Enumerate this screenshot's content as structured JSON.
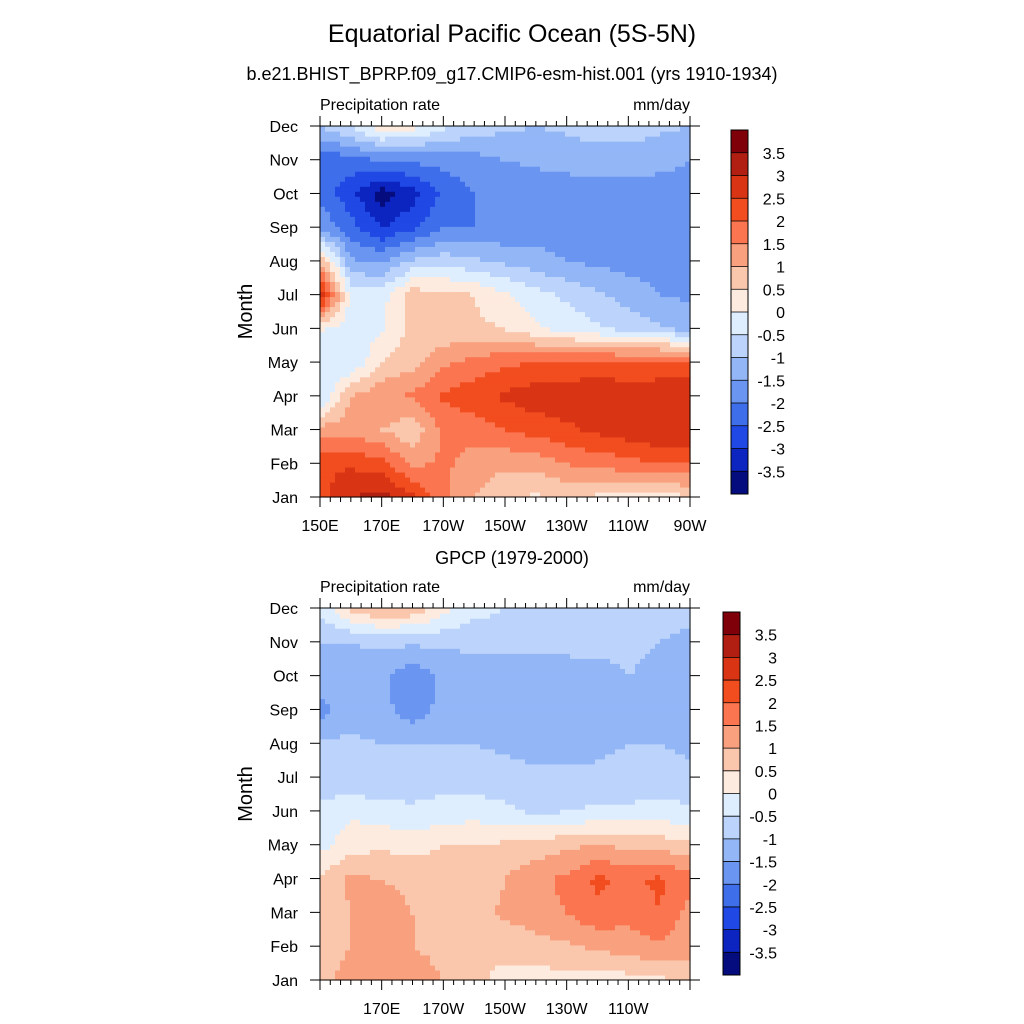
{
  "title": "Equatorial Pacific Ocean (5S-5N)",
  "months": [
    "Jan",
    "Feb",
    "Mar",
    "Apr",
    "May",
    "Jun",
    "Jul",
    "Aug",
    "Sep",
    "Oct",
    "Nov",
    "Dec"
  ],
  "colorbar": {
    "labels": [
      "3.5",
      "3",
      "2.5",
      "2",
      "1.5",
      "1",
      "0.5",
      "0",
      "-0.5",
      "-1",
      "-1.5",
      "-2",
      "-2.5",
      "-3",
      "-3.5"
    ],
    "colors": [
      "#80000a",
      "#b01f12",
      "#d93515",
      "#f24d1f",
      "#fb7650",
      "#f9a07e",
      "#fac7ad",
      "#feebdf",
      "#deeeff",
      "#bcd4fb",
      "#93b6f7",
      "#6a96f2",
      "#3f6eeb",
      "#1f48e4",
      "#0c24c0",
      "#050c7e"
    ]
  },
  "chart_data": [
    {
      "type": "heatmap",
      "subtitle": "b.e21.BHIST_BPRP.f09_g17.CMIP6-esm-hist.001 (yrs 1910-1934)",
      "left_label": "Precipitation rate",
      "right_label": "mm/day",
      "ylabel": "Month",
      "x_ticks": [
        "150E",
        "170E",
        "170W",
        "150W",
        "130W",
        "110W",
        "90W"
      ],
      "x_values": [
        150,
        160,
        170,
        180,
        190,
        200,
        210,
        220,
        230,
        240,
        250,
        260,
        270
      ],
      "y_values": [
        "Jan",
        "Feb",
        "Mar",
        "Apr",
        "May",
        "Jun",
        "Jul",
        "Aug",
        "Sep",
        "Oct",
        "Nov",
        "Dec"
      ],
      "z_values": [
        [
          2.2,
          3.0,
          3.2,
          2.6,
          1.6,
          1.0,
          0.6,
          0.4,
          0.6,
          0.4,
          0.3,
          0.2,
          0.5
        ],
        [
          2.5,
          2.4,
          2.2,
          1.4,
          1.6,
          1.3,
          1.1,
          1.2,
          1.5,
          1.7,
          1.8,
          2.0,
          2.0
        ],
        [
          1.2,
          1.3,
          1.0,
          0.6,
          1.6,
          1.7,
          2.0,
          2.2,
          2.4,
          2.6,
          2.8,
          3.0,
          3.0
        ],
        [
          -0.6,
          1.0,
          1.4,
          1.6,
          2.1,
          2.3,
          2.6,
          2.8,
          2.8,
          2.9,
          2.8,
          2.8,
          2.8
        ],
        [
          -0.4,
          -0.5,
          0.5,
          0.8,
          1.4,
          1.7,
          1.9,
          2.0,
          2.1,
          2.2,
          2.1,
          2.2,
          2.2
        ],
        [
          0.1,
          -0.3,
          -0.1,
          0.7,
          0.6,
          0.6,
          0.5,
          0.1,
          -0.2,
          -0.4,
          -0.7,
          -0.9,
          -1.2
        ],
        [
          3.0,
          -0.2,
          -0.2,
          0.8,
          0.7,
          0.5,
          0.1,
          -0.3,
          -0.6,
          -0.9,
          -1.2,
          -1.5,
          -1.6
        ],
        [
          1.0,
          -1.4,
          -1.6,
          -0.9,
          -0.7,
          -0.9,
          -1.1,
          -1.3,
          -1.5,
          -1.6,
          -1.7,
          -1.7,
          -1.8
        ],
        [
          -1.6,
          -2.3,
          -3.0,
          -2.6,
          -2.0,
          -2.0,
          -1.9,
          -1.8,
          -1.7,
          -1.8,
          -1.8,
          -1.9,
          -1.9
        ],
        [
          -2.2,
          -2.8,
          -3.8,
          -3.2,
          -2.4,
          -2.0,
          -1.9,
          -1.8,
          -1.8,
          -1.8,
          -1.8,
          -1.8,
          -1.8
        ],
        [
          -2.4,
          -2.2,
          -2.0,
          -1.9,
          -1.8,
          -1.7,
          -1.5,
          -1.4,
          -1.3,
          -1.2,
          -1.2,
          -1.3,
          -1.5
        ],
        [
          -1.0,
          -0.5,
          0.4,
          0.2,
          -0.4,
          -0.7,
          -0.9,
          -1.0,
          -0.9,
          -0.8,
          -0.8,
          -0.9,
          -1.0
        ]
      ]
    },
    {
      "type": "heatmap",
      "subtitle": "GPCP (1979-2000)",
      "left_label": "Precipitation rate",
      "right_label": "mm/day",
      "ylabel": "Month",
      "x_ticks": [
        "",
        "170E",
        "170W",
        "150W",
        "130W",
        "110W",
        ""
      ],
      "x_values": [
        150,
        160,
        170,
        180,
        190,
        200,
        210,
        220,
        230,
        240,
        250,
        260,
        270
      ],
      "y_values": [
        "Jan",
        "Feb",
        "Mar",
        "Apr",
        "May",
        "Jun",
        "Jul",
        "Aug",
        "Sep",
        "Oct",
        "Nov",
        "Dec"
      ],
      "z_values": [
        [
          0.9,
          1.1,
          1.2,
          1.4,
          1.0,
          0.6,
          0.4,
          0.3,
          0.3,
          0.2,
          0.3,
          0.4,
          0.6
        ],
        [
          0.9,
          1.0,
          1.1,
          1.0,
          0.8,
          0.5,
          0.6,
          0.8,
          0.9,
          1.1,
          1.3,
          1.4,
          1.2
        ],
        [
          0.8,
          1.0,
          1.2,
          1.0,
          0.9,
          0.8,
          1.1,
          1.3,
          1.5,
          1.9,
          1.6,
          2.0,
          1.3
        ],
        [
          0.6,
          1.1,
          1.0,
          0.9,
          0.8,
          0.5,
          1.0,
          1.4,
          1.6,
          2.1,
          1.9,
          2.1,
          1.7
        ],
        [
          -0.2,
          0.3,
          0.4,
          0.3,
          0.5,
          0.5,
          0.6,
          0.7,
          0.9,
          1.0,
          0.9,
          0.8,
          0.6
        ],
        [
          -0.4,
          -0.1,
          -0.3,
          -0.4,
          -0.3,
          -0.2,
          -0.4,
          -0.6,
          -0.5,
          -0.4,
          -0.4,
          -0.3,
          -0.4
        ],
        [
          -0.8,
          -0.9,
          -0.9,
          -0.8,
          -0.7,
          -0.8,
          -0.8,
          -0.9,
          -0.9,
          -0.9,
          -0.8,
          -0.8,
          -0.9
        ],
        [
          -0.9,
          -0.9,
          -1.0,
          -1.0,
          -1.0,
          -1.0,
          -1.1,
          -1.2,
          -1.2,
          -1.1,
          -1.0,
          -1.0,
          -1.1
        ],
        [
          -1.7,
          -1.2,
          -1.3,
          -1.8,
          -1.3,
          -1.1,
          -1.3,
          -1.4,
          -1.4,
          -1.3,
          -1.1,
          -1.0,
          -1.2
        ],
        [
          -1.2,
          -1.2,
          -1.4,
          -1.9,
          -1.4,
          -1.2,
          -1.3,
          -1.3,
          -1.3,
          -1.2,
          -1.0,
          -1.1,
          -1.2
        ],
        [
          -1.0,
          -1.0,
          -0.9,
          -0.9,
          -0.9,
          -0.9,
          -0.8,
          -0.8,
          -0.8,
          -0.8,
          -0.9,
          -1.0,
          -1.1
        ],
        [
          -0.4,
          0.6,
          1.1,
          0.9,
          0.2,
          -0.3,
          -0.5,
          -0.6,
          -0.6,
          -0.6,
          -0.7,
          -0.8,
          -0.9
        ]
      ]
    }
  ]
}
